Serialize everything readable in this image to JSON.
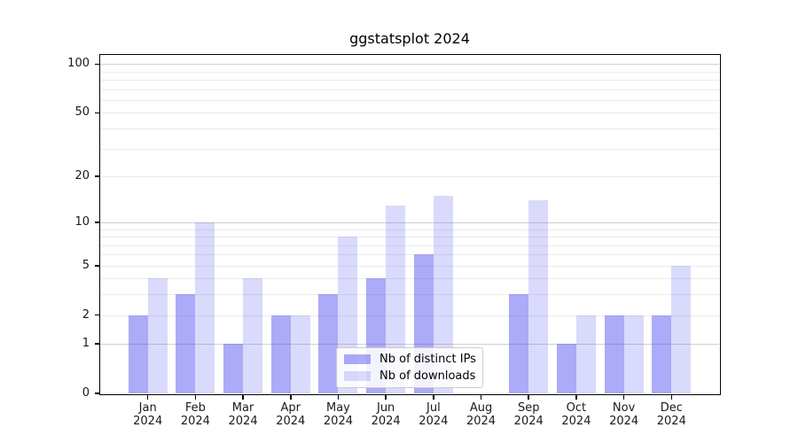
{
  "title": "ggstatsplot 2024",
  "legend": {
    "items": [
      {
        "label": "Nb of distinct IPs",
        "series": "ips"
      },
      {
        "label": "Nb of downloads",
        "series": "downloads"
      }
    ]
  },
  "chart_data": {
    "type": "bar",
    "title": "ggstatsplot 2024",
    "categories": [
      "Jan",
      "Feb",
      "Mar",
      "Apr",
      "May",
      "Jun",
      "Jul",
      "Aug",
      "Sep",
      "Oct",
      "Nov",
      "Dec"
    ],
    "category_year": "2024",
    "series": [
      {
        "name": "Nb of distinct IPs",
        "key": "ips",
        "values": [
          2,
          3,
          1,
          2,
          3,
          4,
          6,
          0,
          3,
          1,
          2,
          2
        ]
      },
      {
        "name": "Nb of downloads",
        "key": "downloads",
        "values": [
          4,
          10,
          4,
          2,
          8,
          13,
          15,
          0,
          14,
          2,
          2,
          5
        ]
      }
    ],
    "yscale": "log1p",
    "ylim": [
      0,
      114
    ],
    "yticks": [
      0,
      1,
      2,
      5,
      10,
      20,
      50,
      100
    ],
    "grid": {
      "major": [
        1,
        10,
        100
      ],
      "minor": [
        2,
        3,
        4,
        5,
        6,
        7,
        8,
        9,
        20,
        30,
        40,
        50,
        60,
        70,
        80,
        90
      ]
    },
    "legend_position": "inside-bottom-center",
    "colors": {
      "bar_base": "#5050F0",
      "alpha_ips": 0.48,
      "alpha_downloads": 0.21,
      "major_grid": "#d0d0d0",
      "minor_grid": "#ebebeb",
      "spine": "#000000",
      "background": "#ffffff"
    }
  }
}
